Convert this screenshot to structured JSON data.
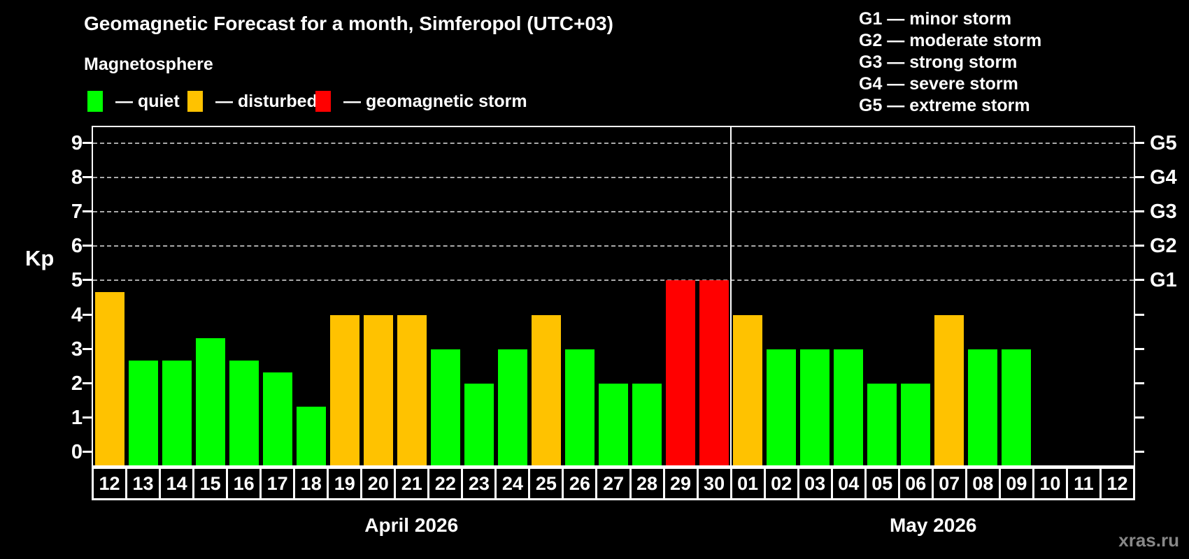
{
  "watermark": "xras.ru",
  "colors": {
    "quiet": "#00ff00",
    "disturbed": "#ffc200",
    "storm": "#ff0000",
    "axis": "#ffffff",
    "grid": "#aaaaaa",
    "background": "#000000",
    "watermark": "#888888"
  },
  "chart_data": {
    "type": "bar",
    "title": "Geomagnetic Forecast for a month, Simferopol (UTC+03)",
    "subtitle": "Magnetosphere",
    "ylabel": "Kp",
    "xlabel": "",
    "ylim": [
      -0.38,
      9.46
    ],
    "yticks": [
      0,
      1,
      2,
      3,
      4,
      5,
      6,
      7,
      8,
      9
    ],
    "grid_values": [
      5,
      6,
      7,
      8,
      9
    ],
    "grid_on": true,
    "legend_position": "top-left",
    "right_axis": [
      {
        "label": "G1",
        "kp": 5
      },
      {
        "label": "G2",
        "kp": 6
      },
      {
        "label": "G3",
        "kp": 7
      },
      {
        "label": "G4",
        "kp": 8
      },
      {
        "label": "G5",
        "kp": 9
      }
    ],
    "legend": [
      {
        "label": "— quiet",
        "level": "quiet"
      },
      {
        "label": "— disturbed",
        "level": "disturbed"
      },
      {
        "label": "— geomagnetic storm",
        "level": "storm"
      }
    ],
    "g_scale_legend": [
      "G1 — minor storm",
      "G2 — moderate storm",
      "G3 — strong storm",
      "G4 — severe storm",
      "G5 — extreme storm"
    ],
    "months": [
      {
        "label": "April 2026",
        "start": 0,
        "count": 19
      },
      {
        "label": "May 2026",
        "start": 19,
        "count": 12
      }
    ],
    "categories": [
      "12",
      "13",
      "14",
      "15",
      "16",
      "17",
      "18",
      "19",
      "20",
      "21",
      "22",
      "23",
      "24",
      "25",
      "26",
      "27",
      "28",
      "29",
      "30",
      "01",
      "02",
      "03",
      "04",
      "05",
      "06",
      "07",
      "08",
      "09",
      "10",
      "11",
      "12"
    ],
    "values": [
      4.67,
      2.67,
      2.67,
      3.33,
      2.67,
      2.33,
      1.33,
      4,
      4,
      4,
      3,
      2,
      3,
      4,
      3,
      2,
      2,
      5,
      5,
      4,
      3,
      3,
      3,
      2,
      2,
      4,
      3,
      3,
      null,
      null,
      null
    ],
    "levels": [
      "disturbed",
      "quiet",
      "quiet",
      "quiet",
      "quiet",
      "quiet",
      "quiet",
      "disturbed",
      "disturbed",
      "disturbed",
      "quiet",
      "quiet",
      "quiet",
      "disturbed",
      "quiet",
      "quiet",
      "quiet",
      "storm",
      "storm",
      "disturbed",
      "quiet",
      "quiet",
      "quiet",
      "quiet",
      "quiet",
      "disturbed",
      "quiet",
      "quiet",
      null,
      null,
      null
    ]
  }
}
